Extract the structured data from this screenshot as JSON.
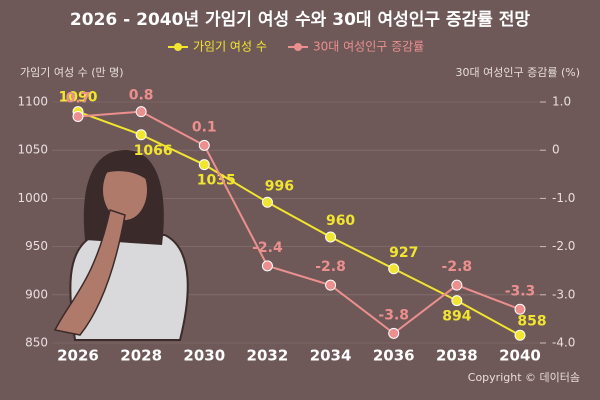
{
  "chart_data": {
    "type": "line",
    "title": "2026 - 2040년 가임기 여성 수와 30대 여성인구 증감률 전망",
    "y_label": "가임기 여성 수 (만 명)",
    "y2_label": "30대 여성인구 증감률 (%)",
    "categories": [
      "2026",
      "2028",
      "2030",
      "2032",
      "2034",
      "2036",
      "2038",
      "2040"
    ],
    "series": [
      {
        "name": "가임기 여성 수",
        "color": "#f2e530",
        "values": [
          1090,
          1066,
          1035,
          996,
          960,
          927,
          894,
          858
        ]
      },
      {
        "name": "30대 여성인구 증감률",
        "color": "#ec8f8f",
        "axis": "y2",
        "values": [
          0.7,
          0.8,
          0.1,
          -2.4,
          -2.8,
          -3.8,
          -2.8,
          -3.3
        ]
      }
    ],
    "ylim": [
      850,
      1100
    ],
    "yticks": [
      850,
      900,
      950,
      1000,
      1050,
      1100
    ],
    "y2lim": [
      -4,
      1
    ],
    "y2ticks": [
      {
        "value": -4,
        "label": "-4.0"
      },
      {
        "value": -3,
        "label": "-3.0"
      },
      {
        "value": -2,
        "label": "-2.0"
      },
      {
        "value": -1,
        "label": "-1.0"
      },
      0,
      {
        "value": 1,
        "label": "1.0"
      }
    ],
    "grid": true,
    "footer": "Copyright © 데이터솜"
  }
}
